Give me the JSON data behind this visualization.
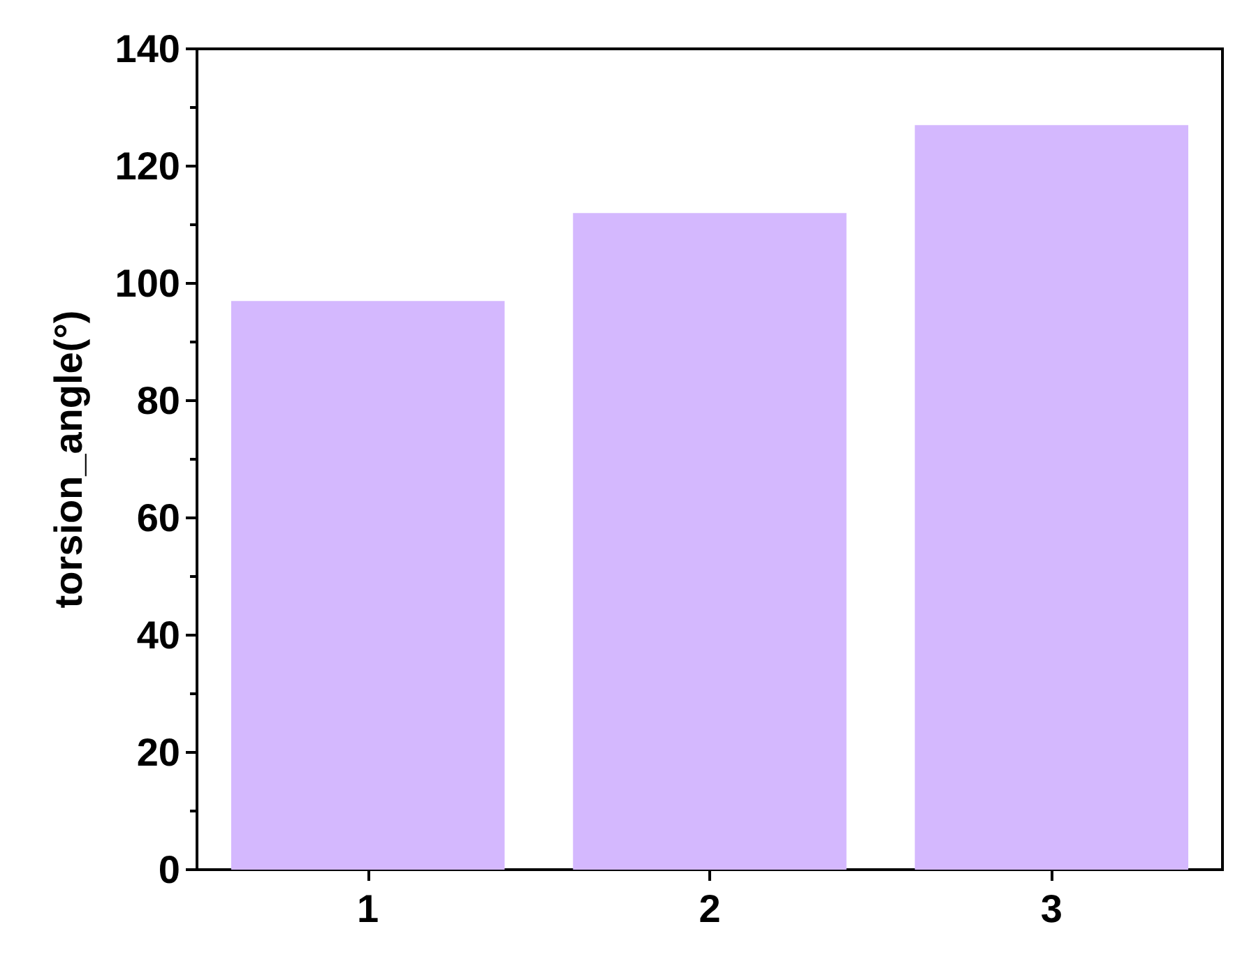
{
  "chart_data": {
    "type": "bar",
    "ylabel": "torsion_angle(°)",
    "categories": [
      "1",
      "2",
      "3"
    ],
    "values": [
      97,
      112,
      127
    ],
    "color": "#d4b8fe",
    "ylim": [
      0,
      140
    ],
    "yticks": [
      0,
      20,
      40,
      60,
      80,
      100,
      120,
      140
    ],
    "grid": false
  }
}
